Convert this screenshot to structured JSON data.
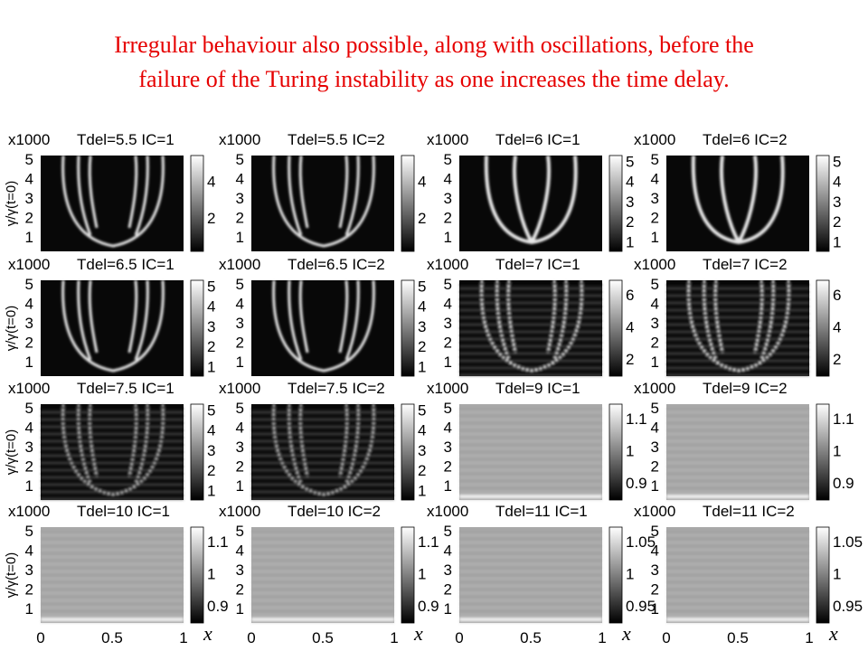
{
  "title": [
    "Irregular behaviour also possible, along with oscillations, before the",
    "failure of the Turing instability as one increases the time delay."
  ],
  "scale_label": "x1000",
  "y_axis_label": "γ/γ(t=0)",
  "y_ticks": [
    "5",
    "4",
    "3",
    "2",
    "1"
  ],
  "x_ticks": [
    "0",
    "0.5",
    "1"
  ],
  "x_label": "x",
  "panels": [
    {
      "label": "Tdel=5.5 IC=1",
      "colorbar_ticks": [
        "4",
        "2"
      ]
    },
    {
      "label": "Tdel=5.5 IC=2",
      "colorbar_ticks": [
        "4",
        "2"
      ]
    },
    {
      "label": "Tdel=6 IC=1",
      "colorbar_ticks": [
        "5",
        "4",
        "3",
        "2",
        "1"
      ]
    },
    {
      "label": "Tdel=6 IC=2",
      "colorbar_ticks": [
        "5",
        "4",
        "3",
        "2",
        "1"
      ]
    },
    {
      "label": "Tdel=6.5 IC=1",
      "colorbar_ticks": [
        "5",
        "4",
        "3",
        "2",
        "1"
      ]
    },
    {
      "label": "Tdel=6.5 IC=2",
      "colorbar_ticks": [
        "5",
        "4",
        "3",
        "2",
        "1"
      ]
    },
    {
      "label": "Tdel=7 IC=1",
      "colorbar_ticks": [
        "6",
        "4",
        "2"
      ]
    },
    {
      "label": "Tdel=7 IC=2",
      "colorbar_ticks": [
        "6",
        "4",
        "2"
      ]
    },
    {
      "label": "Tdel=7.5 IC=1",
      "colorbar_ticks": [
        "5",
        "4",
        "3",
        "2",
        "1"
      ]
    },
    {
      "label": "Tdel=7.5 IC=2",
      "colorbar_ticks": [
        "5",
        "4",
        "3",
        "2",
        "1"
      ]
    },
    {
      "label": "Tdel=9 IC=1",
      "colorbar_ticks": [
        "1.1",
        "1",
        "0.9"
      ]
    },
    {
      "label": "Tdel=9 IC=2",
      "colorbar_ticks": [
        "1.1",
        "1",
        "0.9"
      ]
    },
    {
      "label": "Tdel=10 IC=1",
      "colorbar_ticks": [
        "1.1",
        "1",
        "0.9"
      ]
    },
    {
      "label": "Tdel=10 IC=2",
      "colorbar_ticks": [
        "1.1",
        "1",
        "0.9"
      ]
    },
    {
      "label": "Tdel=11 IC=1",
      "colorbar_ticks": [
        "1.05",
        "1",
        "0.95"
      ]
    },
    {
      "label": "Tdel=11 IC=2",
      "colorbar_ticks": [
        "1.05",
        "1",
        "0.95"
      ]
    }
  ]
}
